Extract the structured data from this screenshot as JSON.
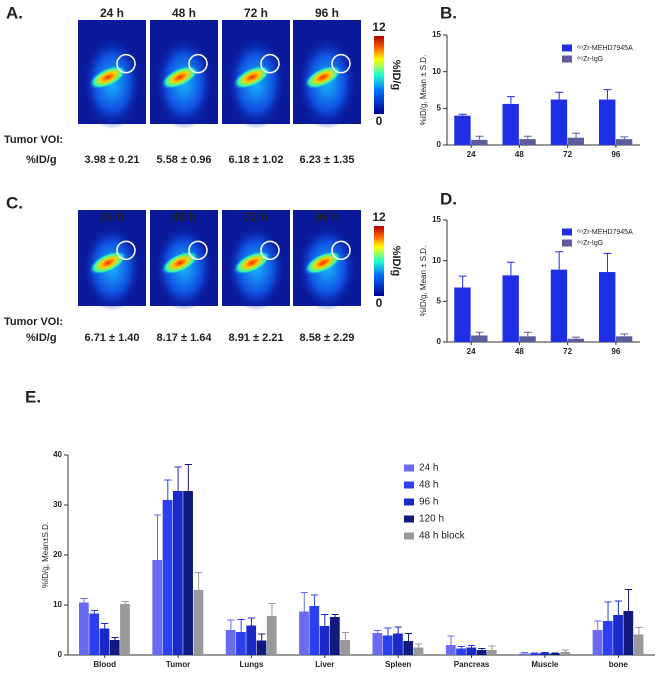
{
  "image_panels": [
    {
      "panel": "A.",
      "times": [
        "24 h",
        "48 h",
        "72 h",
        "96 h"
      ],
      "colorbar": {
        "label": "%ID/g",
        "ticks": [
          0,
          12
        ]
      },
      "voi_label": [
        "Tumor VOI:",
        "%ID/g"
      ],
      "voi_values": [
        "3.98 ± 0.21",
        "5.58 ± 0.96",
        "6.18 ± 1.02",
        "6.23 ± 1.35"
      ]
    },
    {
      "panel": "C.",
      "times": [
        "24 h",
        "48 h",
        "72 h",
        "96 h"
      ],
      "colorbar": {
        "label": "%ID/g",
        "ticks": [
          0,
          12
        ]
      },
      "voi_label": [
        "Tumor VOI:",
        "%ID/g"
      ],
      "voi_values": [
        "6.71 ± 1.40",
        "8.17 ± 1.64",
        "8.91 ± 2.21",
        "8.58 ± 2.29"
      ]
    }
  ],
  "chart_data": [
    {
      "type": "bar",
      "panel": "B.",
      "y_label": "%ID/g, Mean ± S.D.",
      "categories": [
        "24",
        "48",
        "72",
        "96"
      ],
      "series": [
        {
          "name": "⁸⁹Zr-MEHD7945A",
          "color": "#1f2fe6",
          "values": [
            4.0,
            5.6,
            6.2,
            6.2
          ],
          "errors": [
            0.2,
            1.0,
            1.0,
            1.35
          ]
        },
        {
          "name": "⁸⁹Zr-IgG",
          "color": "#5b5b9e",
          "values": [
            0.7,
            0.8,
            1.0,
            0.8
          ],
          "errors": [
            0.5,
            0.4,
            0.6,
            0.3
          ]
        }
      ],
      "ylim": [
        0,
        15
      ],
      "yticks": [
        0,
        5,
        10,
        15
      ],
      "legend": "top-right"
    },
    {
      "type": "bar",
      "panel": "D.",
      "y_label": "%ID/g, Mean ± S.D.",
      "categories": [
        "24",
        "48",
        "72",
        "96"
      ],
      "series": [
        {
          "name": "⁸⁹Zr-MEHD7945A",
          "color": "#1f2fe6",
          "values": [
            6.7,
            8.2,
            8.9,
            8.6
          ],
          "errors": [
            1.4,
            1.6,
            2.2,
            2.3
          ]
        },
        {
          "name": "⁸⁹Zr-IgG",
          "color": "#5b5b9e",
          "values": [
            0.8,
            0.7,
            0.4,
            0.7
          ],
          "errors": [
            0.4,
            0.5,
            0.2,
            0.3
          ]
        }
      ],
      "ylim": [
        0,
        15
      ],
      "yticks": [
        0,
        5,
        10,
        15
      ],
      "legend": "top-right"
    },
    {
      "type": "bar",
      "panel": "E.",
      "y_label": "%ID/g, Mean±S.D.",
      "categories": [
        "Blood",
        "Tumor",
        "Lungs",
        "Liver",
        "Spleen",
        "Pancreas",
        "Muscle",
        "bone"
      ],
      "series": [
        {
          "name": "24 h",
          "color": "#6a6af2",
          "values": [
            10.5,
            19,
            5,
            8.7,
            4.4,
            2,
            0.3,
            5
          ],
          "errors": [
            0.8,
            9,
            2,
            3.8,
            0.5,
            1.8,
            0.2,
            1.8
          ]
        },
        {
          "name": "48 h",
          "color": "#2b40f0",
          "values": [
            8.3,
            31,
            4.6,
            9.8,
            3.9,
            1.3,
            0.3,
            6.8
          ],
          "errors": [
            0.6,
            4,
            2.5,
            2.2,
            1.5,
            0.4,
            0.1,
            3.8
          ]
        },
        {
          "name": "96 h",
          "color": "#1a2ac8",
          "values": [
            5.3,
            32.8,
            5.9,
            5.8,
            4.3,
            1.5,
            0.4,
            8.0
          ],
          "errors": [
            1.0,
            4.8,
            1.5,
            2.3,
            1.3,
            0.4,
            0.1,
            2.8
          ]
        },
        {
          "name": "120 h",
          "color": "#111a80",
          "values": [
            3.0,
            32.8,
            2.9,
            7.6,
            2.8,
            1.0,
            0.3,
            8.8
          ],
          "errors": [
            0.5,
            5.3,
            1.3,
            0.5,
            1.5,
            0.3,
            0.1,
            4.3
          ]
        },
        {
          "name": "48 h block",
          "color": "#999999",
          "values": [
            10.2,
            13,
            7.8,
            3.0,
            1.5,
            1.0,
            0.6,
            4.1
          ],
          "errors": [
            0.5,
            3.5,
            2.5,
            1.5,
            0.7,
            0.8,
            0.4,
            1.4
          ]
        }
      ],
      "ylim": [
        0,
        40
      ],
      "yticks": [
        0,
        10,
        20,
        30,
        40
      ],
      "legend": "top-right"
    }
  ]
}
